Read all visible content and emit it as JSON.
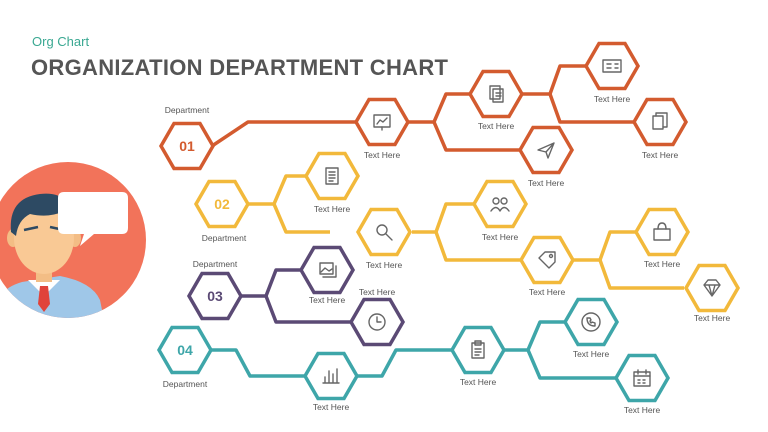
{
  "header": {
    "subtitle": "Org Chart",
    "title": "ORGANIZATION DEPARTMENT CHART"
  },
  "colors": {
    "dept1": "#d35b2f",
    "dept2": "#f2b93b",
    "dept3": "#5b4a75",
    "dept4": "#3ea6a9",
    "avatar_bg": "#f2735a"
  },
  "departments": [
    {
      "number": "01",
      "label": "Department",
      "items": [
        {
          "icon": "presentation-chart-icon",
          "label": "Text Here"
        },
        {
          "icon": "documents-icon",
          "label": "Text Here"
        },
        {
          "icon": "calculator-icon",
          "label": "Text Here"
        },
        {
          "icon": "paper-plane-icon",
          "label": "Text Here"
        },
        {
          "icon": "files-icon",
          "label": "Text Here"
        }
      ]
    },
    {
      "number": "02",
      "label": "Department",
      "items": [
        {
          "icon": "document-list-icon",
          "label": "Text Here"
        },
        {
          "icon": "search-icon",
          "label": "Text Here"
        },
        {
          "icon": "team-icon",
          "label": "Text Here"
        },
        {
          "icon": "price-tag-icon",
          "label": "Text Here"
        },
        {
          "icon": "shopping-bag-icon",
          "label": "Text Here"
        },
        {
          "icon": "diamond-icon",
          "label": "Text Here"
        }
      ]
    },
    {
      "number": "03",
      "label": "Department",
      "items": [
        {
          "icon": "image-gallery-icon",
          "label": "Text Here"
        },
        {
          "icon": "clock-icon",
          "label": "Text Here"
        }
      ]
    },
    {
      "number": "04",
      "label": "Department",
      "items": [
        {
          "icon": "bar-chart-icon",
          "label": "Text Here"
        },
        {
          "icon": "clipboard-icon",
          "label": "Text Here"
        },
        {
          "icon": "phone-icon",
          "label": "Text Here"
        },
        {
          "icon": "calendar-icon",
          "label": "Text Here"
        }
      ]
    }
  ]
}
